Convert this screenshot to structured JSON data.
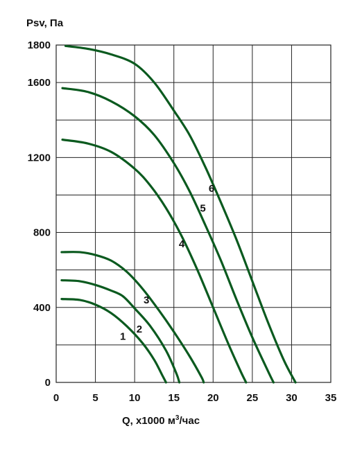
{
  "chart_data": {
    "type": "line",
    "ylabel": "Psv, Па",
    "xlabel_main": "Q, x1000 м",
    "xlabel_sup": "3",
    "xlabel_tail": "/час",
    "xlim": [
      0,
      35
    ],
    "ylim": [
      0,
      1800
    ],
    "x_ticks": [
      0,
      5,
      10,
      15,
      20,
      25,
      30,
      35
    ],
    "y_ticks": [
      0,
      400,
      800,
      1200,
      1600,
      1800
    ],
    "x_tick_labels": [
      "0",
      "5",
      "10",
      "15",
      "20",
      "25",
      "30",
      "35"
    ],
    "y_tick_labels": [
      "0",
      "400",
      "800",
      "1200",
      "1600",
      "1800"
    ],
    "grid": true,
    "line_color": "#0b5a1f",
    "series": [
      {
        "label": "1",
        "label_at": [
          8.5,
          245
        ],
        "points": [
          [
            0.7,
            445
          ],
          [
            3,
            440
          ],
          [
            5,
            415
          ],
          [
            7,
            370
          ],
          [
            9,
            300
          ],
          [
            11,
            210
          ],
          [
            12.5,
            120
          ],
          [
            13.5,
            40
          ],
          [
            14,
            0
          ]
        ]
      },
      {
        "label": "2",
        "label_at": [
          10.6,
          285
        ],
        "points": [
          [
            0.7,
            545
          ],
          [
            3,
            540
          ],
          [
            5,
            520
          ],
          [
            7,
            490
          ],
          [
            8.5,
            460
          ],
          [
            10,
            395
          ],
          [
            12,
            300
          ],
          [
            14,
            170
          ],
          [
            15.3,
            50
          ],
          [
            15.7,
            0
          ]
        ]
      },
      {
        "label": "3",
        "label_at": [
          11.5,
          440
        ],
        "points": [
          [
            0.7,
            695
          ],
          [
            3,
            695
          ],
          [
            5,
            680
          ],
          [
            7,
            650
          ],
          [
            9,
            590
          ],
          [
            11,
            500
          ],
          [
            13,
            390
          ],
          [
            15,
            270
          ],
          [
            17,
            140
          ],
          [
            18.5,
            30
          ],
          [
            18.8,
            0
          ]
        ]
      },
      {
        "label": "4",
        "label_at": [
          16,
          740
        ],
        "points": [
          [
            0.8,
            1295
          ],
          [
            4,
            1275
          ],
          [
            7,
            1230
          ],
          [
            10,
            1140
          ],
          [
            12,
            1050
          ],
          [
            14,
            930
          ],
          [
            16,
            780
          ],
          [
            18,
            600
          ],
          [
            20,
            400
          ],
          [
            22,
            200
          ],
          [
            23.5,
            60
          ],
          [
            24.2,
            0
          ]
        ]
      },
      {
        "label": "5",
        "label_at": [
          18.7,
          930
        ],
        "points": [
          [
            0.8,
            1570
          ],
          [
            4,
            1550
          ],
          [
            7,
            1500
          ],
          [
            10,
            1420
          ],
          [
            12.5,
            1320
          ],
          [
            15,
            1170
          ],
          [
            17,
            1020
          ],
          [
            19,
            840
          ],
          [
            21,
            650
          ],
          [
            23,
            440
          ],
          [
            25,
            240
          ],
          [
            27,
            60
          ],
          [
            27.7,
            0
          ]
        ]
      },
      {
        "label": "6",
        "label_at": [
          19.8,
          1035
        ],
        "points": [
          [
            1.2,
            1795
          ],
          [
            4,
            1780
          ],
          [
            7,
            1750
          ],
          [
            10,
            1700
          ],
          [
            12.5,
            1600
          ],
          [
            15,
            1450
          ],
          [
            17,
            1320
          ],
          [
            19,
            1150
          ],
          [
            21,
            960
          ],
          [
            23,
            760
          ],
          [
            25,
            540
          ],
          [
            27,
            320
          ],
          [
            29,
            120
          ],
          [
            30.5,
            0
          ]
        ]
      }
    ]
  }
}
